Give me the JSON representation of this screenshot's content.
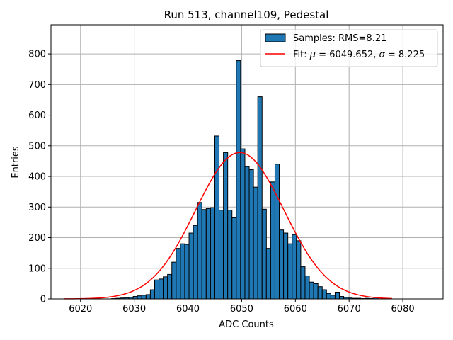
{
  "chart_data": {
    "type": "histogram",
    "title": "Run 513, channel109, Pedestal",
    "xlabel": "ADC Counts",
    "ylabel": "Entries",
    "xlim": [
      6014.5,
      6087.5
    ],
    "ylim": [
      0,
      895
    ],
    "xticks": [
      6020,
      6030,
      6040,
      6050,
      6060,
      6070,
      6080
    ],
    "yticks": [
      0,
      100,
      200,
      300,
      400,
      500,
      600,
      700,
      800
    ],
    "grid": true,
    "legend_position": "top-right",
    "colors": {
      "bars": "#1f77b4",
      "bar_edge": "#000000",
      "fit": "#ff0000",
      "grid": "#b0b0b0"
    },
    "histogram": {
      "name": "Samples: RMS=8.21",
      "bin_start": 6017,
      "bin_width": 0.8,
      "counts": [
        0,
        0,
        0,
        0,
        0,
        0,
        0,
        0,
        0,
        0,
        0,
        1,
        2,
        3,
        4,
        5,
        8,
        10,
        12,
        14,
        30,
        62,
        65,
        72,
        80,
        120,
        165,
        180,
        178,
        215,
        240,
        315,
        292,
        295,
        298,
        532,
        290,
        478,
        290,
        265,
        778,
        490,
        432,
        422,
        365,
        660,
        293,
        165,
        382,
        440,
        225,
        215,
        180,
        210,
        190,
        105,
        75,
        55,
        50,
        40,
        30,
        18,
        12,
        22,
        8,
        5,
        3,
        2,
        2,
        1,
        2,
        1,
        5
      ],
      "empty_bins_drawn": false
    },
    "fit": {
      "name": "Fit: μ = 6049.652, σ = 8.225",
      "name_parts": {
        "prefix": "Fit: ",
        "mu": "μ",
        "mid": " = 6049.652, ",
        "sigma": "σ",
        "suffix": " = 8.225"
      },
      "function": "gaussian",
      "mean": 6049.652,
      "sigma": 8.225,
      "amplitude": 478,
      "x_range": [
        6017,
        6078
      ]
    }
  }
}
